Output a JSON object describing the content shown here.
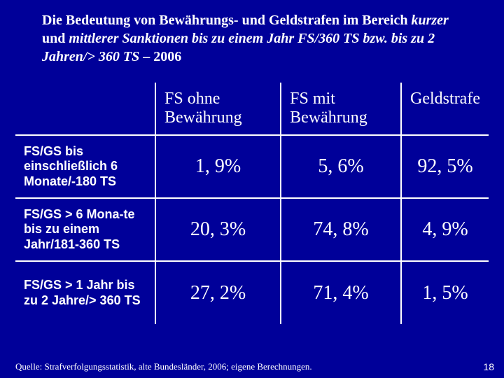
{
  "title_parts": {
    "p1": "Die Bedeutung von Bewährungs- und Geldstrafen im Bereich ",
    "i1": "kurzer",
    "p2": " und ",
    "i2": "mittlerer Sanktionen bis zu einem Jahr FS/360 TS bzw. bis zu 2 Jahren/> 360 TS",
    "p3": " – 2006"
  },
  "headers": {
    "col1": "FS ohne Bewährung",
    "col2": "FS mit Bewährung",
    "col3": "Geldstrafe"
  },
  "rows": [
    {
      "label": "FS/GS bis einschließlich 6 Monate/-180 TS",
      "c1": "1, 9%",
      "c2": "5, 6%",
      "c3": "92, 5%"
    },
    {
      "label": "FS/GS > 6 Mona-te bis zu einem Jahr/181-360 TS",
      "c1": "20, 3%",
      "c2": "74, 8%",
      "c3": "4, 9%"
    },
    {
      "label": "FS/GS > 1 Jahr bis zu 2 Jahre/> 360 TS",
      "c1": "27, 2%",
      "c2": "71, 4%",
      "c3": "1, 5%"
    }
  ],
  "source": "Quelle: Strafverfolgungsstatistik, alte Bundesländer, 2006; eigene Berechnungen.",
  "page": "18"
}
